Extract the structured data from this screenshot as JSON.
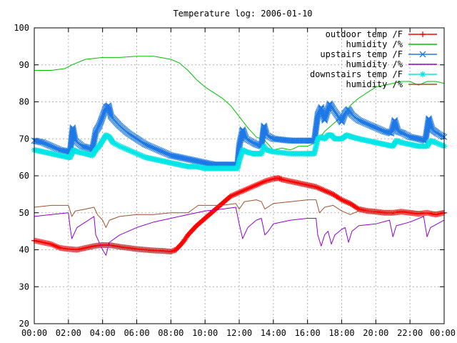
{
  "chart_data": {
    "type": "line",
    "title": "Temperature log: 2006-01-10",
    "xlabel": "",
    "ylabel": "",
    "xlim": [
      0,
      24
    ],
    "ylim": [
      20,
      100
    ],
    "x_ticks": [
      "00:00",
      "02:00",
      "04:00",
      "06:00",
      "08:00",
      "10:00",
      "12:00",
      "14:00",
      "16:00",
      "18:00",
      "20:00",
      "22:00",
      "00:00"
    ],
    "y_ticks": [
      "20",
      "30",
      "40",
      "50",
      "60",
      "70",
      "80",
      "90",
      "100"
    ],
    "grid": "dashed",
    "legend_position": "top-right",
    "series": [
      {
        "name": "outdoor temp /F",
        "color": "#ff0000",
        "marker": "plus",
        "values": [
          [
            0,
            42.5
          ],
          [
            0.5,
            42
          ],
          [
            1,
            41.5
          ],
          [
            1.5,
            40.5
          ],
          [
            2,
            40.2
          ],
          [
            2.5,
            40
          ],
          [
            3,
            40.5
          ],
          [
            3.5,
            41
          ],
          [
            4,
            41.3
          ],
          [
            4.5,
            41.2
          ],
          [
            5,
            40.8
          ],
          [
            5.5,
            40.5
          ],
          [
            6,
            40.2
          ],
          [
            6.5,
            40
          ],
          [
            7,
            39.8
          ],
          [
            7.5,
            39.7
          ],
          [
            8,
            39.5
          ],
          [
            8.3,
            40
          ],
          [
            8.7,
            42
          ],
          [
            9,
            44
          ],
          [
            9.5,
            46.5
          ],
          [
            10,
            48.5
          ],
          [
            10.5,
            50.5
          ],
          [
            11,
            52.5
          ],
          [
            11.5,
            54.5
          ],
          [
            12,
            55.5
          ],
          [
            12.5,
            56.5
          ],
          [
            13,
            57.5
          ],
          [
            13.5,
            58.5
          ],
          [
            14,
            59.2
          ],
          [
            14.3,
            59.4
          ],
          [
            14.5,
            59
          ],
          [
            15,
            58.5
          ],
          [
            15.5,
            58
          ],
          [
            16,
            57.5
          ],
          [
            16.5,
            57
          ],
          [
            17,
            56
          ],
          [
            17.5,
            55
          ],
          [
            18,
            53.5
          ],
          [
            18.5,
            52.5
          ],
          [
            19,
            51
          ],
          [
            19.5,
            50.5
          ],
          [
            20,
            50.3
          ],
          [
            20.5,
            50
          ],
          [
            21,
            50
          ],
          [
            21.5,
            50.3
          ],
          [
            22,
            50
          ],
          [
            22.5,
            49.7
          ],
          [
            23,
            50
          ],
          [
            23.5,
            49.5
          ],
          [
            24,
            50
          ]
        ]
      },
      {
        "name": "humidity /%",
        "color": "#00c000",
        "marker": "none",
        "values": [
          [
            0,
            88.5
          ],
          [
            1,
            88.5
          ],
          [
            1.8,
            89
          ],
          [
            2.2,
            90
          ],
          [
            3,
            91.5
          ],
          [
            4,
            92
          ],
          [
            5,
            92
          ],
          [
            6,
            92.3
          ],
          [
            7,
            92.3
          ],
          [
            8,
            91.5
          ],
          [
            8.5,
            90.5
          ],
          [
            9,
            88.5
          ],
          [
            9.5,
            86
          ],
          [
            10,
            84
          ],
          [
            10.5,
            82.5
          ],
          [
            11,
            81
          ],
          [
            11.5,
            79
          ],
          [
            12,
            76
          ],
          [
            12.5,
            73
          ],
          [
            13,
            70.5
          ],
          [
            13.5,
            69.5
          ],
          [
            14,
            67
          ],
          [
            14.5,
            67.5
          ],
          [
            15,
            67
          ],
          [
            15.5,
            68
          ],
          [
            16,
            68
          ],
          [
            16.5,
            69
          ],
          [
            17,
            72
          ],
          [
            17.5,
            74
          ],
          [
            18,
            76
          ],
          [
            18.5,
            79
          ],
          [
            19,
            81
          ],
          [
            19.5,
            82.5
          ],
          [
            20,
            84
          ],
          [
            20.5,
            84.5
          ],
          [
            21,
            85
          ],
          [
            21.5,
            85.5
          ],
          [
            22,
            85.5
          ],
          [
            22.5,
            84.5
          ],
          [
            23,
            85.5
          ],
          [
            23.5,
            85.5
          ],
          [
            24,
            85
          ]
        ]
      },
      {
        "name": "upstairs temp /F",
        "color": "#1e78e6",
        "marker": "cross",
        "values": [
          [
            0,
            69.5
          ],
          [
            0.5,
            69
          ],
          [
            1,
            68
          ],
          [
            1.5,
            67
          ],
          [
            2,
            66.5
          ],
          [
            2.1,
            66.5
          ],
          [
            2.25,
            73
          ],
          [
            2.4,
            69.5
          ],
          [
            2.8,
            68
          ],
          [
            3.2,
            67.5
          ],
          [
            3.4,
            67
          ],
          [
            3.6,
            72
          ],
          [
            3.8,
            73.5
          ],
          [
            4,
            76
          ],
          [
            4.2,
            78.5
          ],
          [
            4.35,
            79
          ],
          [
            4.5,
            76
          ],
          [
            5,
            73.5
          ],
          [
            5.5,
            71.5
          ],
          [
            6,
            70
          ],
          [
            6.5,
            68.5
          ],
          [
            7,
            67.5
          ],
          [
            7.5,
            66.5
          ],
          [
            8,
            65.5
          ],
          [
            8.5,
            65
          ],
          [
            9,
            64.5
          ],
          [
            9.5,
            64
          ],
          [
            10,
            63.5
          ],
          [
            10.5,
            63
          ],
          [
            11,
            63
          ],
          [
            11.5,
            63
          ],
          [
            11.9,
            63
          ],
          [
            12,
            68
          ],
          [
            12.2,
            72.5
          ],
          [
            12.4,
            70
          ],
          [
            12.8,
            69
          ],
          [
            13,
            68.5
          ],
          [
            13.3,
            68
          ],
          [
            13.45,
            73.5
          ],
          [
            13.6,
            71
          ],
          [
            14,
            70
          ],
          [
            15,
            69.5
          ],
          [
            16,
            69.5
          ],
          [
            16.4,
            69.5
          ],
          [
            16.6,
            76.5
          ],
          [
            16.8,
            78.5
          ],
          [
            17,
            75
          ],
          [
            17.3,
            79.5
          ],
          [
            17.5,
            78
          ],
          [
            17.8,
            76
          ],
          [
            18,
            74.5
          ],
          [
            18.2,
            77
          ],
          [
            18.4,
            78
          ],
          [
            18.6,
            76.5
          ],
          [
            19,
            75
          ],
          [
            19.5,
            74
          ],
          [
            20,
            73
          ],
          [
            20.5,
            72
          ],
          [
            20.9,
            71.5
          ],
          [
            21.1,
            75
          ],
          [
            21.3,
            72
          ],
          [
            21.6,
            71.5
          ],
          [
            22,
            70.5
          ],
          [
            22.5,
            70
          ],
          [
            22.9,
            69.5
          ],
          [
            23.1,
            75.5
          ],
          [
            23.3,
            72.5
          ],
          [
            23.6,
            71.5
          ],
          [
            24,
            70.5
          ]
        ]
      },
      {
        "name": "humidity /%",
        "color": "#9400d3",
        "marker": "none",
        "values": [
          [
            0,
            49
          ],
          [
            1,
            49.5
          ],
          [
            2,
            50
          ],
          [
            2.1,
            46
          ],
          [
            2.2,
            43
          ],
          [
            2.5,
            46
          ],
          [
            3,
            47.5
          ],
          [
            3.5,
            49
          ],
          [
            3.6,
            44
          ],
          [
            3.8,
            42
          ],
          [
            4,
            40
          ],
          [
            4.2,
            38.5
          ],
          [
            4.4,
            42
          ],
          [
            5,
            44
          ],
          [
            6,
            46
          ],
          [
            7,
            47.5
          ],
          [
            8,
            48.5
          ],
          [
            9,
            49.5
          ],
          [
            10,
            50.5
          ],
          [
            11,
            51
          ],
          [
            11.8,
            51.5
          ],
          [
            12,
            47
          ],
          [
            12.2,
            43
          ],
          [
            12.5,
            46
          ],
          [
            13,
            48
          ],
          [
            13.3,
            48.5
          ],
          [
            13.5,
            44
          ],
          [
            13.7,
            45
          ],
          [
            14,
            47
          ],
          [
            15,
            48
          ],
          [
            16,
            48.5
          ],
          [
            16.5,
            48.5
          ],
          [
            16.6,
            44
          ],
          [
            16.8,
            41
          ],
          [
            17,
            44
          ],
          [
            17.2,
            45
          ],
          [
            17.4,
            41.5
          ],
          [
            17.6,
            44
          ],
          [
            18,
            45.5
          ],
          [
            18.2,
            46
          ],
          [
            18.4,
            42
          ],
          [
            18.6,
            45
          ],
          [
            19,
            46.5
          ],
          [
            20,
            47
          ],
          [
            20.8,
            48
          ],
          [
            21,
            43.5
          ],
          [
            21.2,
            46.5
          ],
          [
            22,
            47.5
          ],
          [
            22.8,
            49
          ],
          [
            23,
            43.5
          ],
          [
            23.2,
            46
          ],
          [
            24,
            48
          ]
        ]
      },
      {
        "name": "downstairs temp /F",
        "color": "#00e5e5",
        "marker": "star",
        "values": [
          [
            0,
            67
          ],
          [
            0.5,
            66.5
          ],
          [
            1,
            66
          ],
          [
            1.5,
            65.5
          ],
          [
            2,
            65
          ],
          [
            2.1,
            65
          ],
          [
            2.3,
            67
          ],
          [
            2.5,
            66.5
          ],
          [
            3,
            66
          ],
          [
            3.4,
            65.5
          ],
          [
            3.6,
            67
          ],
          [
            3.8,
            68
          ],
          [
            4,
            69.5
          ],
          [
            4.2,
            71
          ],
          [
            4.4,
            70.5
          ],
          [
            4.6,
            69
          ],
          [
            5,
            68
          ],
          [
            5.5,
            67
          ],
          [
            6,
            66
          ],
          [
            6.5,
            65
          ],
          [
            7,
            64.5
          ],
          [
            7.5,
            64
          ],
          [
            8,
            63.5
          ],
          [
            8.5,
            63
          ],
          [
            9,
            62.5
          ],
          [
            9.5,
            62.5
          ],
          [
            10,
            62
          ],
          [
            10.5,
            62
          ],
          [
            11,
            62
          ],
          [
            11.5,
            62
          ],
          [
            11.9,
            62
          ],
          [
            12,
            64
          ],
          [
            12.2,
            67
          ],
          [
            12.4,
            66.5
          ],
          [
            12.8,
            66
          ],
          [
            13,
            66
          ],
          [
            13.3,
            66
          ],
          [
            13.45,
            68
          ],
          [
            13.6,
            67
          ],
          [
            14,
            66.5
          ],
          [
            15,
            66
          ],
          [
            16,
            66
          ],
          [
            16.4,
            66
          ],
          [
            16.6,
            70
          ],
          [
            16.8,
            70.5
          ],
          [
            17,
            70
          ],
          [
            17.2,
            71
          ],
          [
            17.4,
            71
          ],
          [
            17.6,
            70
          ],
          [
            18,
            70
          ],
          [
            18.3,
            71
          ],
          [
            18.6,
            70.5
          ],
          [
            19,
            70
          ],
          [
            19.5,
            69.5
          ],
          [
            20,
            69
          ],
          [
            20.5,
            68.5
          ],
          [
            21,
            68
          ],
          [
            21.2,
            69.5
          ],
          [
            21.5,
            69
          ],
          [
            22,
            68.5
          ],
          [
            22.5,
            68
          ],
          [
            23,
            68
          ],
          [
            23.2,
            69.5
          ],
          [
            23.5,
            69
          ],
          [
            24,
            68
          ]
        ]
      },
      {
        "name": "humidity /%",
        "color": "#a0522d",
        "marker": "none",
        "values": [
          [
            0,
            51.5
          ],
          [
            1,
            52
          ],
          [
            2,
            52
          ],
          [
            2.2,
            49
          ],
          [
            2.4,
            50.5
          ],
          [
            3,
            51
          ],
          [
            3.5,
            51.5
          ],
          [
            3.7,
            49.5
          ],
          [
            4,
            48
          ],
          [
            4.2,
            46
          ],
          [
            4.4,
            48
          ],
          [
            5,
            49
          ],
          [
            6,
            49.5
          ],
          [
            7,
            49.5
          ],
          [
            8,
            50
          ],
          [
            9,
            50
          ],
          [
            9.3,
            51
          ],
          [
            9.6,
            52
          ],
          [
            10,
            52
          ],
          [
            11,
            52
          ],
          [
            11.8,
            52.5
          ],
          [
            12,
            51
          ],
          [
            12.3,
            53
          ],
          [
            13,
            53.5
          ],
          [
            13.3,
            53
          ],
          [
            13.5,
            51
          ],
          [
            14,
            52.5
          ],
          [
            15,
            53
          ],
          [
            16,
            53.5
          ],
          [
            16.5,
            53.5
          ],
          [
            16.7,
            50
          ],
          [
            17,
            51.5
          ],
          [
            17.5,
            52
          ],
          [
            18,
            50.5
          ],
          [
            18.5,
            49.5
          ],
          [
            19,
            50.5
          ],
          [
            20,
            50.5
          ],
          [
            20.8,
            50.5
          ],
          [
            21,
            49.5
          ],
          [
            21.2,
            50.5
          ],
          [
            22,
            50.5
          ],
          [
            23,
            50
          ],
          [
            24,
            50.5
          ]
        ]
      }
    ]
  }
}
